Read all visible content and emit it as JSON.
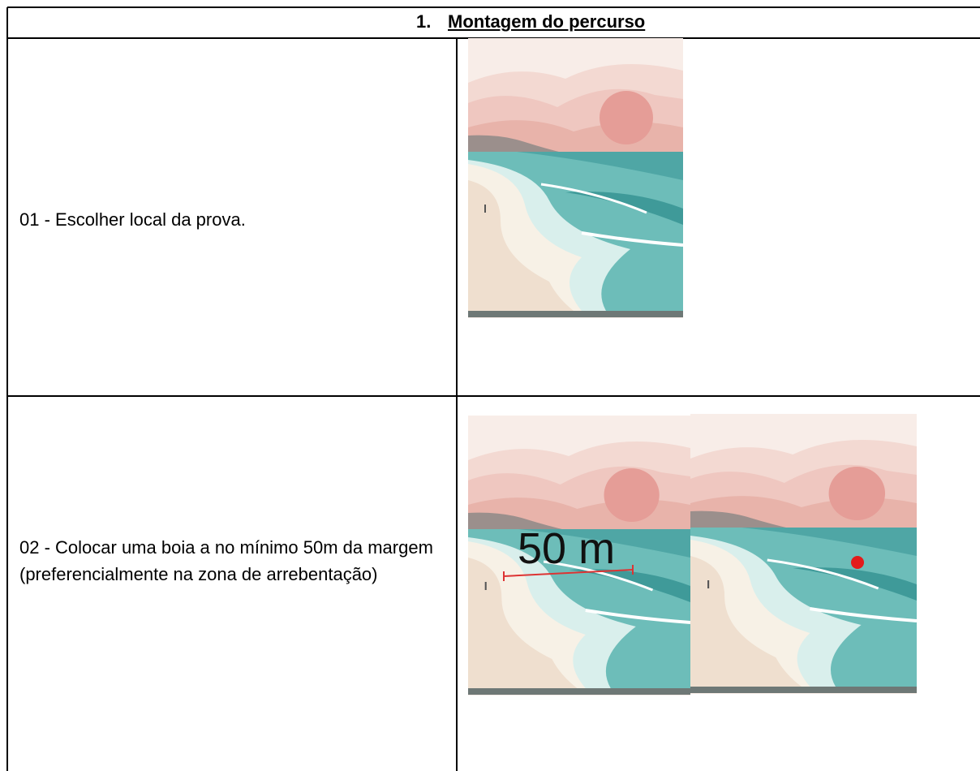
{
  "header": {
    "number": "1.",
    "title": "Montagem do percurso"
  },
  "table": {
    "rows": [
      {
        "text": "01 - Escolher local da prova."
      },
      {
        "text": "02 - Colocar uma boia a no mínimo 50m da margem (preferencialmente na zona de arrebentação)",
        "annotation": "50 m"
      }
    ]
  }
}
